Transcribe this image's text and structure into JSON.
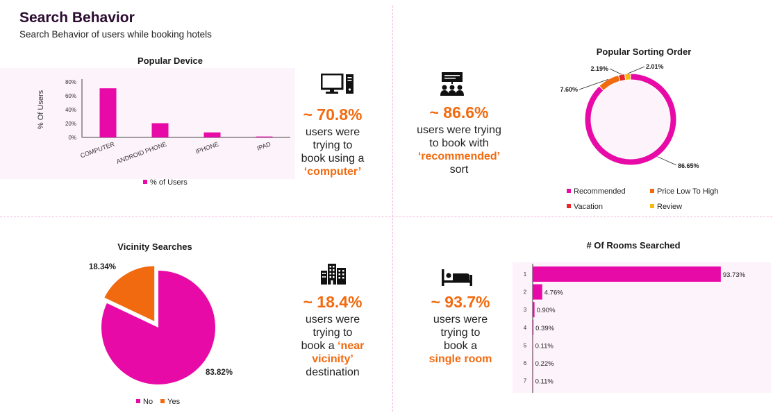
{
  "header": {
    "title": "Search Behavior",
    "subtitle": "Search Behavior of users while booking hotels"
  },
  "colors": {
    "magenta": "#e80aa6",
    "orange": "#f26a0f",
    "red": "#e8262a",
    "yellow": "#f7b810",
    "plot_bg": "#fdf3fa",
    "divider": "#f3b6da"
  },
  "stats": {
    "device": {
      "icon": "computer-icon",
      "pct": "~ 70.8%",
      "line1": "users were",
      "line2": "trying to",
      "line3": "book using a",
      "highlight": "‘computer’"
    },
    "sort": {
      "icon": "presentation-audience-icon",
      "pct": "~ 86.6%",
      "line1": "users were trying",
      "line2": "to book with",
      "highlight": "‘recommended’",
      "line3": "sort"
    },
    "vicinity": {
      "icon": "buildings-icon",
      "pct": "~ 18.4%",
      "line1": "users were",
      "line2": "trying to",
      "line3": "book a ",
      "highlight1": "‘near",
      "highlight2": "vicinity’",
      "line4": "destination"
    },
    "rooms": {
      "icon": "bed-icon",
      "pct": "~ 93.7%",
      "line1": "users were",
      "line2": "trying to",
      "line3": "book a",
      "highlight": "single room"
    }
  },
  "chart_data": [
    {
      "id": "popular-device",
      "type": "bar",
      "title": "Popular Device",
      "ylabel": "% Of Users",
      "categories": [
        "COMPUTER",
        "ANDROID PHONE",
        "IPHONE",
        "IPAD"
      ],
      "series": [
        {
          "name": "% of Users",
          "values": [
            70.8,
            20.5,
            7.2,
            1.3
          ]
        }
      ],
      "yticks": [
        "0%",
        "20%",
        "40%",
        "60%",
        "80%"
      ],
      "ylim": [
        0,
        80
      ],
      "legend": "bottom"
    },
    {
      "id": "popular-sorting-order",
      "type": "pie",
      "variant": "donut",
      "title": "Popular Sorting Order",
      "labels": [
        "Recommended",
        "Price Low To High",
        "Vacation",
        "Review"
      ],
      "values": [
        86.65,
        7.6,
        2.19,
        2.01
      ],
      "data_labels": [
        "86.65%",
        "7.60%",
        "2.19%",
        "2.01%"
      ],
      "legend": "bottom"
    },
    {
      "id": "vicinity-searches",
      "type": "pie",
      "title": "Vicinity Searches",
      "labels": [
        "No",
        "Yes"
      ],
      "values": [
        83.82,
        18.34
      ],
      "data_labels": [
        "83.82%",
        "18.34%"
      ],
      "legend": "bottom"
    },
    {
      "id": "rooms-searched",
      "type": "bar",
      "orientation": "horizontal",
      "title": "# Of Rooms Searched",
      "categories": [
        "1",
        "2",
        "3",
        "4",
        "5",
        "6",
        "7"
      ],
      "values": [
        93.73,
        4.76,
        0.9,
        0.39,
        0.11,
        0.22,
        0.11
      ],
      "data_labels": [
        "93.73%",
        "4.76%",
        "0.90%",
        "0.39%",
        "0.11%",
        "0.22%",
        "0.11%"
      ]
    }
  ]
}
